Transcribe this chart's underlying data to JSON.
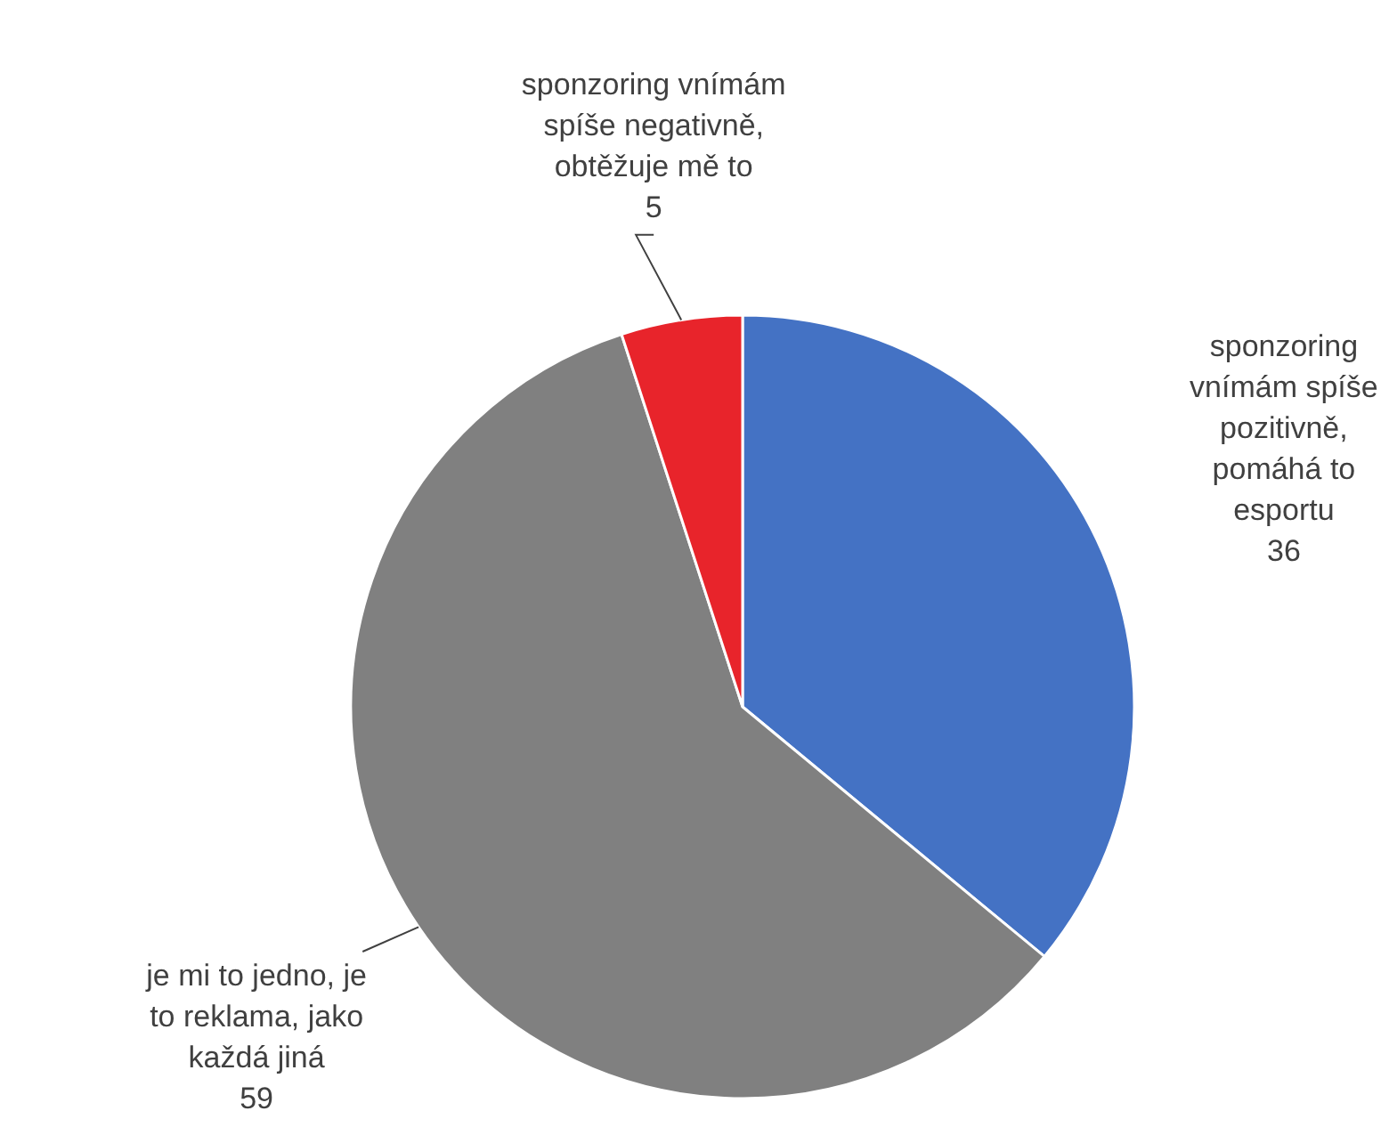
{
  "chart_data": {
    "type": "pie",
    "categories": [
      "sponzoring vnímám spíše pozitivně, pomáhá to esportu",
      "je mi to jedno, je to reklama, jako každá jiná",
      "sponzoring vnímám spíše negativně, obtěžuje mě to"
    ],
    "values": [
      36,
      59,
      5
    ],
    "colors": [
      "#4472c4",
      "#808080",
      "#e8242b"
    ],
    "data_labels": true
  }
}
